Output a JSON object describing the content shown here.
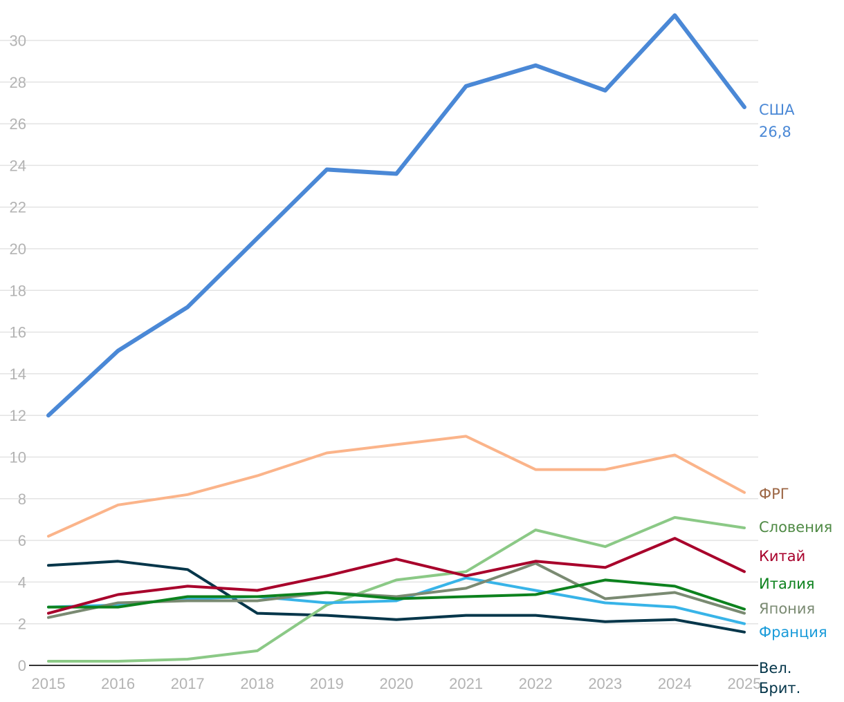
{
  "chart_data": {
    "type": "line",
    "title": "",
    "xlabel": "",
    "ylabel": "",
    "ylim": [
      0,
      31
    ],
    "yticks": [
      0,
      2,
      4,
      6,
      8,
      10,
      12,
      14,
      16,
      18,
      20,
      22,
      24,
      26,
      28,
      30
    ],
    "grid": true,
    "x": [
      2015,
      2016,
      2017,
      2018,
      2019,
      2020,
      2021,
      2022,
      2023,
      2024,
      2025
    ],
    "series": [
      {
        "name": "Вел. Брит.",
        "label_lines": [
          "Вел.",
          "Брит."
        ],
        "color": "#05364a",
        "width": 4,
        "values": [
          4.8,
          5.0,
          4.6,
          2.5,
          2.4,
          2.2,
          2.4,
          2.4,
          2.1,
          2.2,
          1.6
        ]
      },
      {
        "name": "Словения",
        "color": "#8bc986",
        "label_color": "#4f8a45",
        "width": 4,
        "values": [
          0.2,
          0.2,
          0.3,
          0.7,
          2.9,
          4.1,
          4.5,
          6.5,
          5.7,
          7.1,
          6.6
        ]
      },
      {
        "name": "Франция",
        "color": "#38b4e8",
        "label_color": "#1a9bd9",
        "width": 4,
        "values": [
          2.8,
          2.9,
          3.2,
          3.3,
          3.0,
          3.1,
          4.2,
          3.6,
          3.0,
          2.8,
          2.0
        ]
      },
      {
        "name": "Япония",
        "color": "#7a8a72",
        "label_color": "#7a8a72",
        "width": 4,
        "values": [
          2.3,
          3.0,
          3.1,
          3.1,
          3.5,
          3.3,
          3.7,
          4.9,
          3.2,
          3.5,
          2.5
        ]
      },
      {
        "name": "Италия",
        "color": "#0d821e",
        "label_color": "#0d821e",
        "width": 4,
        "values": [
          2.8,
          2.8,
          3.3,
          3.3,
          3.5,
          3.2,
          3.3,
          3.4,
          4.1,
          3.8,
          2.7
        ]
      },
      {
        "name": "Китай",
        "color": "#a8002b",
        "label_color": "#a8002b",
        "width": 4,
        "values": [
          2.5,
          3.4,
          3.8,
          3.6,
          4.3,
          5.1,
          4.3,
          5.0,
          4.7,
          6.1,
          4.5
        ]
      },
      {
        "name": "ФРГ",
        "color": "#fbb48a",
        "label_color": "#9c6644",
        "width": 4,
        "values": [
          6.2,
          7.7,
          8.2,
          9.1,
          10.2,
          10.6,
          11.0,
          9.4,
          9.4,
          10.1,
          8.3
        ]
      },
      {
        "name": "США",
        "color": "#4a88d6",
        "label_color": "#4a88d6",
        "width": 6,
        "values": [
          12.0,
          15.1,
          17.2,
          20.5,
          23.8,
          23.6,
          27.8,
          28.8,
          27.6,
          31.2,
          26.8
        ],
        "end_value_label": "26,8"
      }
    ]
  }
}
